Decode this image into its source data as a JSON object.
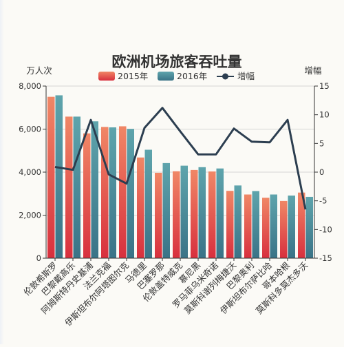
{
  "chart_data": {
    "type": "bar",
    "title": "欧洲机场旅客吞吐量",
    "y_left_unit": "万人次",
    "y_right_unit": "增幅",
    "ylim_left": [
      0,
      8000
    ],
    "yticks_left": [
      "0",
      "2,000",
      "4,000",
      "6,000",
      "8,000"
    ],
    "ylim_right": [
      -15,
      15
    ],
    "yticks_right": [
      "-15",
      "-10",
      "-5",
      "0",
      "5",
      "10",
      "15"
    ],
    "legend_position": "top",
    "legend": [
      "2015年",
      "2016年",
      "增幅"
    ],
    "categories": [
      "伦敦希斯罗",
      "巴黎戴高乐",
      "阿姆斯特丹史基浦",
      "法兰克福",
      "伊斯坦布尔阿塔图尔克",
      "马德里",
      "巴塞罗那",
      "伦敦盖特威克",
      "慕尼黑",
      "罗马菲乌米奇诺",
      "莫斯科谢列梅捷沃",
      "巴黎奥利",
      "伊斯坦布尔萨比哈",
      "哥本哈根",
      "莫斯科多莫杰多沃"
    ],
    "series": [
      {
        "name": "2015年",
        "type": "bar",
        "axis": "left",
        "color": "#e0474c",
        "values": [
          7500,
          6580,
          5800,
          6100,
          6130,
          4680,
          3970,
          4040,
          4100,
          4030,
          3130,
          2960,
          2810,
          2660,
          3050
        ]
      },
      {
        "name": "2016年",
        "type": "bar",
        "axis": "left",
        "color": "#3f8394",
        "values": [
          7570,
          6580,
          6360,
          6080,
          6010,
          5040,
          4420,
          4300,
          4230,
          4170,
          3380,
          3120,
          2960,
          2910,
          2850
        ]
      },
      {
        "name": "增幅",
        "type": "line",
        "axis": "right",
        "color": "#2c3e50",
        "values": [
          0.9,
          0.4,
          9.1,
          -0.4,
          -2.0,
          7.7,
          11.2,
          7.1,
          3.1,
          3.1,
          7.6,
          5.3,
          5.2,
          9.1,
          -6.5
        ]
      }
    ],
    "grid": true
  }
}
